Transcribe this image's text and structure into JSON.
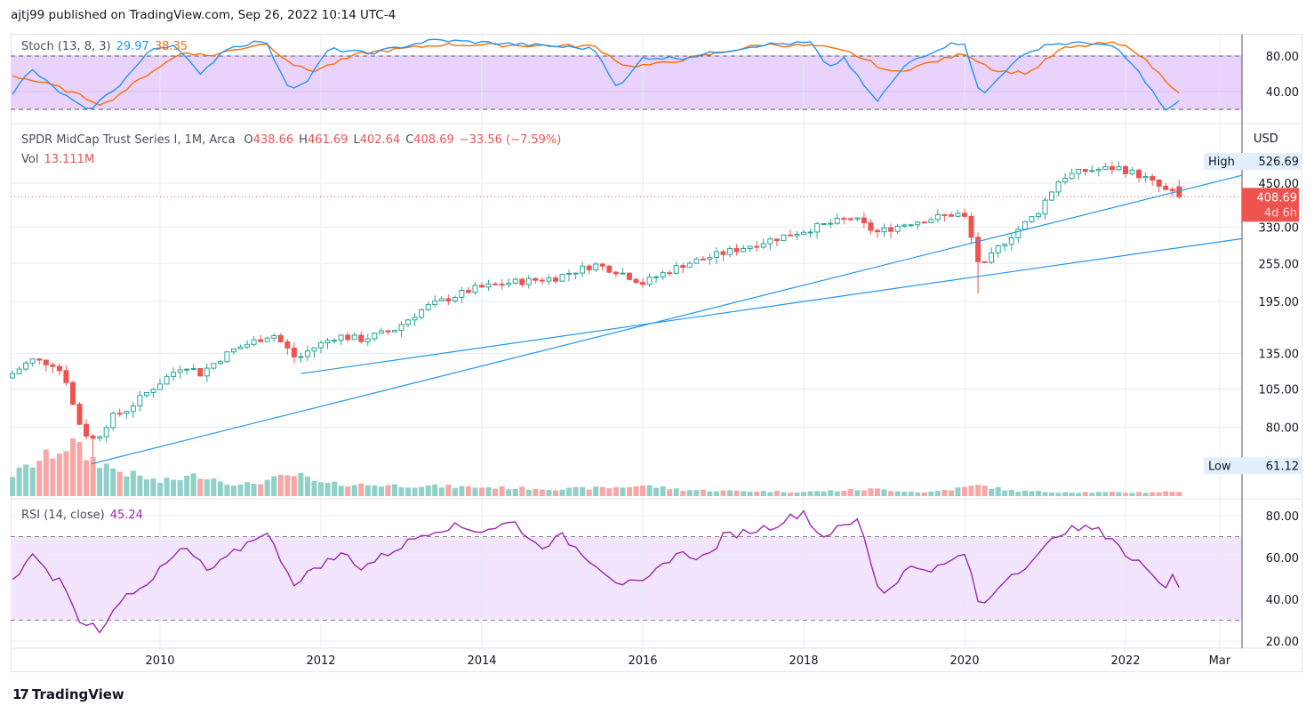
{
  "header": {
    "published": "ajtj99 published on TradingView.com, Sep 26, 2022 10:14 UTC-4"
  },
  "stoch": {
    "label": "Stoch (13, 8, 3)",
    "k_value": "29.97",
    "d_value": "38.35",
    "k_color": "#2196f3",
    "d_color": "#ff6d00",
    "ticks": [
      "80.00",
      "40.00"
    ],
    "k_anchors": [
      [
        2008.17,
        38
      ],
      [
        2008.4,
        65
      ],
      [
        2008.7,
        43
      ],
      [
        2009.1,
        18
      ],
      [
        2009.5,
        48
      ],
      [
        2009.9,
        88
      ],
      [
        2010.2,
        93
      ],
      [
        2010.5,
        58
      ],
      [
        2010.8,
        88
      ],
      [
        2011.3,
        98
      ],
      [
        2011.6,
        45
      ],
      [
        2011.8,
        48
      ],
      [
        2012.1,
        88
      ],
      [
        2012.6,
        83
      ],
      [
        2013.4,
        98
      ],
      [
        2014.5,
        93
      ],
      [
        2015.4,
        88
      ],
      [
        2015.7,
        43
      ],
      [
        2016.0,
        78
      ],
      [
        2016.5,
        78
      ],
      [
        2017.5,
        93
      ],
      [
        2018.1,
        95
      ],
      [
        2018.3,
        65
      ],
      [
        2018.5,
        78
      ],
      [
        2018.9,
        28
      ],
      [
        2019.3,
        73
      ],
      [
        2019.8,
        93
      ],
      [
        2020.0,
        95
      ],
      [
        2020.2,
        33
      ],
      [
        2020.6,
        73
      ],
      [
        2021.0,
        93
      ],
      [
        2021.6,
        95
      ],
      [
        2021.9,
        88
      ],
      [
        2022.2,
        58
      ],
      [
        2022.5,
        18
      ],
      [
        2022.67,
        29.97
      ]
    ],
    "d_anchors": [
      [
        2008.17,
        58
      ],
      [
        2008.7,
        46
      ],
      [
        2009.3,
        25
      ],
      [
        2009.9,
        63
      ],
      [
        2010.3,
        85
      ],
      [
        2010.6,
        80
      ],
      [
        2011.3,
        95
      ],
      [
        2011.7,
        68
      ],
      [
        2011.9,
        63
      ],
      [
        2012.5,
        83
      ],
      [
        2013.5,
        93
      ],
      [
        2015.4,
        91
      ],
      [
        2015.8,
        68
      ],
      [
        2016.2,
        71
      ],
      [
        2017.5,
        93
      ],
      [
        2018.2,
        91
      ],
      [
        2018.6,
        83
      ],
      [
        2019.1,
        61
      ],
      [
        2019.8,
        78
      ],
      [
        2020.0,
        83
      ],
      [
        2020.4,
        63
      ],
      [
        2020.8,
        61
      ],
      [
        2021.2,
        88
      ],
      [
        2021.8,
        95
      ],
      [
        2022.1,
        88
      ],
      [
        2022.5,
        53
      ],
      [
        2022.67,
        38.35
      ]
    ]
  },
  "main": {
    "symbol": "SPDR MidCap Trust Series I, 1M, Arca",
    "o_label": "O",
    "o": "438.66",
    "h_label": "H",
    "h": "461.69",
    "l_label": "L",
    "l": "402.64",
    "c_label": "C",
    "c": "408.69",
    "change": "−33.56 (−7.59%)",
    "vol_label": "Vol",
    "vol": "13.111M",
    "currency": "USD",
    "high_label": "High",
    "high_value": "526.69",
    "low_label": "Low",
    "low_value": "61.12",
    "last_price": "408.69",
    "countdown": "4d 6h",
    "up_color": "#26a69a",
    "down_color": "#ef5350",
    "ticks": [
      "450.00",
      "330.00",
      "255.00",
      "195.00",
      "135.00",
      "105.00",
      "80.00"
    ],
    "price_anchors": [
      [
        2008.17,
        117
      ],
      [
        2008.4,
        129
      ],
      [
        2008.7,
        125
      ],
      [
        2008.85,
        110
      ],
      [
        2008.95,
        86
      ],
      [
        2009.1,
        75
      ],
      [
        2009.2,
        73
      ],
      [
        2009.4,
        86
      ],
      [
        2009.6,
        91
      ],
      [
        2010.0,
        110
      ],
      [
        2010.3,
        125
      ],
      [
        2010.5,
        117
      ],
      [
        2010.9,
        138
      ],
      [
        2011.4,
        155
      ],
      [
        2011.7,
        129
      ],
      [
        2011.85,
        138
      ],
      [
        2012.2,
        153
      ],
      [
        2012.5,
        149
      ],
      [
        2012.9,
        159
      ],
      [
        2013.3,
        187
      ],
      [
        2013.9,
        213
      ],
      [
        2014.3,
        222
      ],
      [
        2014.9,
        230
      ],
      [
        2015.4,
        253
      ],
      [
        2015.7,
        241
      ],
      [
        2016.0,
        222
      ],
      [
        2016.5,
        253
      ],
      [
        2016.9,
        270
      ],
      [
        2017.5,
        297
      ],
      [
        2017.9,
        317
      ],
      [
        2018.6,
        352
      ],
      [
        2018.9,
        317
      ],
      [
        2019.3,
        340
      ],
      [
        2019.9,
        363
      ],
      [
        2020.0,
        352
      ],
      [
        2020.2,
        241
      ],
      [
        2020.4,
        282
      ],
      [
        2020.9,
        363
      ],
      [
        2021.2,
        468
      ],
      [
        2021.5,
        491
      ],
      [
        2021.9,
        503
      ],
      [
        2022.2,
        473
      ],
      [
        2022.5,
        426
      ],
      [
        2022.67,
        408.69
      ]
    ],
    "volume_anchors_m": [
      [
        2008.17,
        60
      ],
      [
        2008.5,
        100
      ],
      [
        2008.9,
        150
      ],
      [
        2009.1,
        110
      ],
      [
        2009.5,
        70
      ],
      [
        2010.0,
        40
      ],
      [
        2010.5,
        60
      ],
      [
        2011.0,
        30
      ],
      [
        2011.7,
        60
      ],
      [
        2012.0,
        35
      ],
      [
        2013.0,
        30
      ],
      [
        2014.0,
        25
      ],
      [
        2015.0,
        20
      ],
      [
        2015.7,
        25
      ],
      [
        2016.0,
        30
      ],
      [
        2016.5,
        18
      ],
      [
        2017.0,
        15
      ],
      [
        2018.0,
        12
      ],
      [
        2018.9,
        20
      ],
      [
        2019.5,
        10
      ],
      [
        2020.2,
        30
      ],
      [
        2020.6,
        15
      ],
      [
        2021.0,
        12
      ],
      [
        2022.0,
        10
      ],
      [
        2022.67,
        13.111
      ]
    ],
    "trendlines": [
      [
        [
          2009.15,
          61.8
        ],
        [
          2023.45,
          476
        ]
      ],
      [
        [
          2011.75,
          117
        ],
        [
          2023.45,
          304
        ]
      ]
    ]
  },
  "rsi": {
    "label": "RSI (14, close)",
    "value": "45.24",
    "color": "#9c27b0",
    "ticks": [
      "80.00",
      "60.00",
      "40.00",
      "20.00"
    ],
    "anchors": [
      [
        2008.17,
        48
      ],
      [
        2008.4,
        62
      ],
      [
        2008.6,
        52
      ],
      [
        2008.8,
        48
      ],
      [
        2009.0,
        28
      ],
      [
        2009.1,
        29
      ],
      [
        2009.3,
        25
      ],
      [
        2009.5,
        40
      ],
      [
        2009.9,
        50
      ],
      [
        2010.3,
        65
      ],
      [
        2010.6,
        53
      ],
      [
        2011.3,
        73
      ],
      [
        2011.7,
        46
      ],
      [
        2011.9,
        55
      ],
      [
        2012.3,
        62
      ],
      [
        2012.5,
        55
      ],
      [
        2013.3,
        72
      ],
      [
        2013.6,
        75
      ],
      [
        2014.0,
        73
      ],
      [
        2014.4,
        77
      ],
      [
        2014.7,
        65
      ],
      [
        2015.0,
        70
      ],
      [
        2015.7,
        48
      ],
      [
        2016.0,
        47
      ],
      [
        2016.4,
        62
      ],
      [
        2016.8,
        60
      ],
      [
        2017.0,
        70
      ],
      [
        2017.6,
        75
      ],
      [
        2018.0,
        82
      ],
      [
        2018.2,
        70
      ],
      [
        2018.7,
        78
      ],
      [
        2018.9,
        48
      ],
      [
        2019.0,
        43
      ],
      [
        2019.3,
        55
      ],
      [
        2019.7,
        55
      ],
      [
        2020.0,
        62
      ],
      [
        2020.2,
        35
      ],
      [
        2020.5,
        50
      ],
      [
        2020.9,
        60
      ],
      [
        2021.2,
        73
      ],
      [
        2021.6,
        74
      ],
      [
        2021.9,
        68
      ],
      [
        2022.0,
        60
      ],
      [
        2022.3,
        55
      ],
      [
        2022.5,
        46
      ],
      [
        2022.6,
        53
      ],
      [
        2022.67,
        45.24
      ]
    ]
  },
  "time_axis": {
    "ticks": [
      [
        "2010",
        2010
      ],
      [
        "2012",
        2012
      ],
      [
        "2014",
        2014
      ],
      [
        "2016",
        2016
      ],
      [
        "2018",
        2018
      ],
      [
        "2020",
        2020
      ],
      [
        "2022",
        2022
      ],
      [
        "Mar",
        2023.17
      ]
    ]
  },
  "footer": {
    "brand": "TradingView",
    "logo": "17"
  }
}
